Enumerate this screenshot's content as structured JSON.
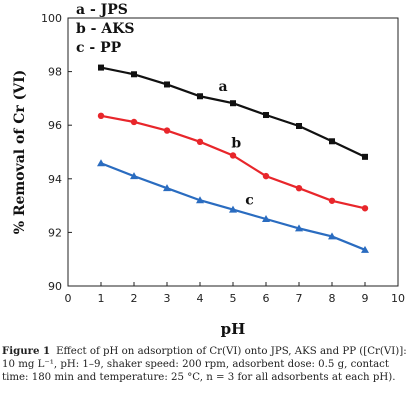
{
  "chart_data": {
    "type": "line",
    "xlabel": "pH",
    "ylabel": "% Removal of Cr (VI)",
    "xlim": [
      0,
      10
    ],
    "ylim": [
      90,
      100
    ],
    "xticks": [
      "0",
      "1",
      "2",
      "3",
      "4",
      "5",
      "6",
      "7",
      "8",
      "9",
      "10"
    ],
    "yticks": [
      "90",
      "92",
      "94",
      "96",
      "98",
      "100"
    ],
    "grid": false,
    "legend_position": "top-left",
    "legend": [
      "a - JPS",
      "b - AKS",
      "c - PP"
    ],
    "x": [
      1,
      2,
      3,
      4,
      5,
      6,
      7,
      8,
      9
    ],
    "series": [
      {
        "name": "a",
        "color": "#111111",
        "marker": "square",
        "values": [
          98.15,
          97.9,
          97.52,
          97.08,
          96.82,
          96.38,
          95.97,
          95.4,
          94.82
        ]
      },
      {
        "name": "b",
        "color": "#e8262b",
        "marker": "circle",
        "values": [
          96.35,
          96.12,
          95.8,
          95.38,
          94.87,
          94.1,
          93.65,
          93.18,
          92.9
        ]
      },
      {
        "name": "c",
        "color": "#2a6cc0",
        "marker": "triangle",
        "values": [
          94.58,
          94.1,
          93.65,
          93.2,
          92.85,
          92.5,
          92.15,
          91.85,
          91.35
        ]
      }
    ]
  },
  "caption": {
    "label": "Figure 1",
    "text": "Effect of pH on adsorption of Cr(VI) onto JPS, AKS and PP ([Cr(VI)]: 10 mg L⁻¹, pH: 1–9, shaker speed: 200 rpm, adsorbent dose: 0.5 g, contact time: 180 min and temperature: 25 °C, n = 3 for all adsorbents at each pH)."
  }
}
